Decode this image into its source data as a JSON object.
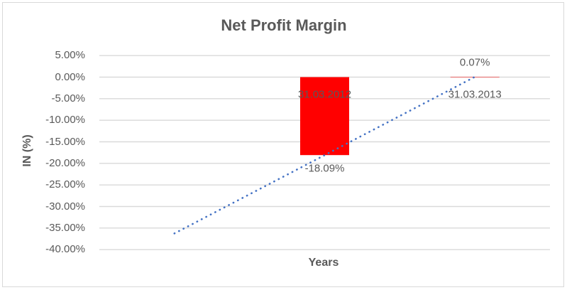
{
  "chart_data": {
    "type": "bar",
    "title": "Net Profit Margin",
    "xlabel": "Years",
    "ylabel": "IN (%)",
    "categories": [
      "31.03.2012",
      "31.03.2013"
    ],
    "values": [
      -18.09,
      0.07
    ],
    "data_labels": [
      "-18.09%",
      "0.07%"
    ],
    "yticks": [
      5,
      0,
      -5,
      -10,
      -15,
      -20,
      -25,
      -30,
      -35,
      -40
    ],
    "ytick_labels": [
      "5.00%",
      "0.00%",
      "-5.00%",
      "-10.00%",
      "-15.00%",
      "-20.00%",
      "-25.00%",
      "-30.00%",
      "-35.00%",
      "-40.00%"
    ],
    "ylim": [
      -40,
      5
    ],
    "grid": true,
    "legend": "none",
    "bar_color": "#FF0000",
    "trendline": {
      "type": "linear",
      "style": "dotted",
      "color": "#4472C4",
      "backward_forecast_periods": 1,
      "start_value_pct": -36.25,
      "end_value_pct": 0.07
    },
    "colors": {
      "text": "#595959",
      "gridline": "#D9D9D9",
      "border": "#D9D9D9",
      "background": "#FFFFFF"
    }
  }
}
